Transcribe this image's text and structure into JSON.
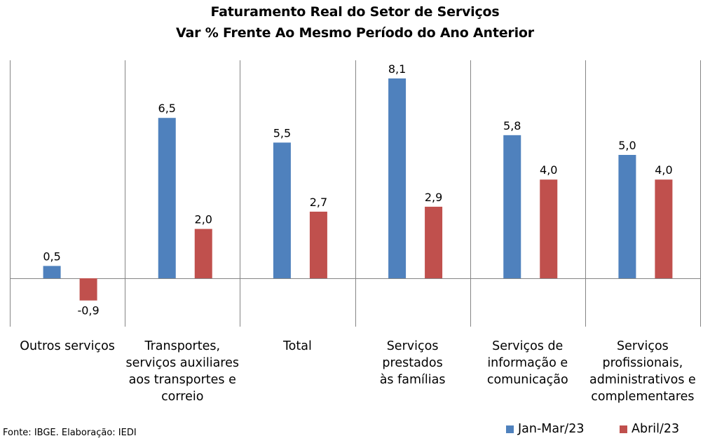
{
  "chart_data": {
    "type": "bar",
    "title": "Faturamento Real do Setor de Serviços",
    "subtitle": "Var % Frente Ao Mesmo Período do Ano Anterior",
    "categories": [
      "Outros serviços",
      "Transportes, serviços auxiliares aos transportes e correio",
      "Total",
      "Serviços prestados às famílias",
      "Serviços de informação e comunicação",
      "Serviços profissionais, administrativos e complementares"
    ],
    "category_lines": [
      [
        "Outros serviços"
      ],
      [
        "Transportes,",
        "serviços auxiliares",
        "aos transportes e",
        "correio"
      ],
      [
        "Total"
      ],
      [
        "Serviços prestados",
        "às famílias"
      ],
      [
        "Serviços de",
        "informação e",
        "comunicação"
      ],
      [
        "Serviços",
        "profissionais,",
        "administrativos e",
        "complementares"
      ]
    ],
    "series": [
      {
        "name": "Jan-Mar/23",
        "color": "#4F81BD",
        "values": [
          0.5,
          6.5,
          5.5,
          8.1,
          5.8,
          5.0
        ],
        "labels": [
          "0,5",
          "6,5",
          "5,5",
          "8,1",
          "5,8",
          "5,0"
        ]
      },
      {
        "name": "Abril/23",
        "color": "#C0504D",
        "values": [
          -0.9,
          2.0,
          2.7,
          2.9,
          4.0,
          4.0
        ],
        "labels": [
          "-0,9",
          "2,0",
          "2,7",
          "2,9",
          "4,0",
          "4,0"
        ]
      }
    ],
    "ylim": [
      -2.0,
      8.9
    ],
    "grid": false,
    "legend": "bottom-right"
  },
  "source": "Fonte: IBGE. Elaboração: IEDI"
}
